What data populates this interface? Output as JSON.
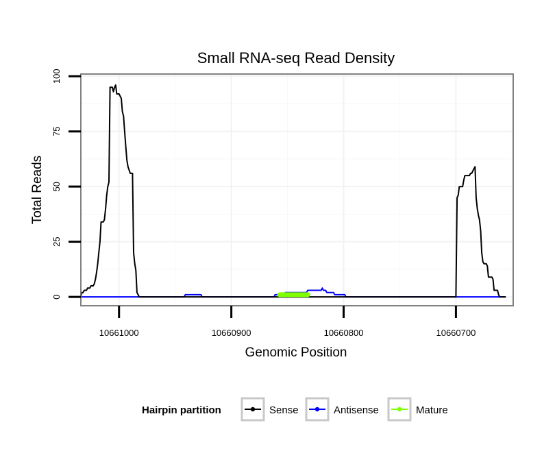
{
  "chart_data": {
    "type": "line",
    "title": "Small RNA-seq Read Density",
    "xlabel": "Genomic Position",
    "ylabel": "Total Reads",
    "xlim": [
      10661034,
      10660649
    ],
    "ylim": [
      -4,
      101
    ],
    "x_reversed": true,
    "xticks": [
      10661000,
      10660900,
      10660800,
      10660700
    ],
    "xtick_labels": [
      "10661000",
      "10660900",
      "10660800",
      "10660700"
    ],
    "yticks": [
      0,
      25,
      50,
      75,
      100
    ],
    "ytick_labels": [
      "0",
      "25",
      "50",
      "75",
      "100"
    ],
    "grid": true,
    "legend": {
      "title": "Hairpin partition",
      "position": "bottom",
      "entries": [
        "Sense",
        "Antisense",
        "Mature"
      ]
    },
    "series": [
      {
        "name": "Sense",
        "color": "#000000",
        "points": [
          [
            10661034,
            0
          ],
          [
            10661033,
            2
          ],
          [
            10661032,
            2
          ],
          [
            10661031,
            3
          ],
          [
            10661029,
            3
          ],
          [
            10661028,
            4
          ],
          [
            10661026,
            4
          ],
          [
            10661025,
            5
          ],
          [
            10661023,
            5
          ],
          [
            10661022,
            6
          ],
          [
            10661021,
            8
          ],
          [
            10661020,
            11
          ],
          [
            10661019,
            15
          ],
          [
            10661018,
            20
          ],
          [
            10661017,
            25
          ],
          [
            10661016,
            34
          ],
          [
            10661014,
            34
          ],
          [
            10661013,
            35
          ],
          [
            10661012,
            40
          ],
          [
            10661011,
            46
          ],
          [
            10661010,
            50
          ],
          [
            10661009,
            52
          ],
          [
            10661008,
            95
          ],
          [
            10661006,
            95
          ],
          [
            10661005,
            93
          ],
          [
            10661004,
            95
          ],
          [
            10661003,
            96
          ],
          [
            10661002,
            92
          ],
          [
            10661000,
            92
          ],
          [
            10660998,
            90
          ],
          [
            10660997,
            84
          ],
          [
            10660996,
            82
          ],
          [
            10660995,
            75
          ],
          [
            10660994,
            68
          ],
          [
            10660993,
            62
          ],
          [
            10660992,
            59
          ],
          [
            10660990,
            56
          ],
          [
            10660988,
            56
          ],
          [
            10660987,
            20
          ],
          [
            10660986,
            15
          ],
          [
            10660985,
            12
          ],
          [
            10660984,
            2
          ],
          [
            10660983,
            1
          ],
          [
            10660982,
            0
          ],
          [
            10660780,
            0
          ],
          [
            10660700,
            0
          ],
          [
            10660699,
            45
          ],
          [
            10660698,
            46
          ],
          [
            10660697,
            50
          ],
          [
            10660694,
            50
          ],
          [
            10660693,
            53
          ],
          [
            10660692,
            55
          ],
          [
            10660688,
            55
          ],
          [
            10660687,
            56
          ],
          [
            10660686,
            56
          ],
          [
            10660685,
            57
          ],
          [
            10660684,
            58
          ],
          [
            10660683,
            59
          ],
          [
            10660682,
            45
          ],
          [
            10660681,
            40
          ],
          [
            10660680,
            37
          ],
          [
            10660679,
            35
          ],
          [
            10660678,
            30
          ],
          [
            10660677,
            20
          ],
          [
            10660676,
            16
          ],
          [
            10660675,
            15
          ],
          [
            10660673,
            15
          ],
          [
            10660672,
            14
          ],
          [
            10660671,
            9
          ],
          [
            10660668,
            9
          ],
          [
            10660667,
            8
          ],
          [
            10660666,
            3
          ],
          [
            10660663,
            3
          ],
          [
            10660662,
            1
          ],
          [
            10660661,
            0
          ],
          [
            10660656,
            0
          ]
        ]
      },
      {
        "name": "Antisense",
        "color": "#0000ff",
        "points": [
          [
            10661034,
            0
          ],
          [
            10660942,
            0
          ],
          [
            10660941,
            1
          ],
          [
            10660927,
            1
          ],
          [
            10660926,
            0
          ],
          [
            10660862,
            0
          ],
          [
            10660861,
            1
          ],
          [
            10660853,
            1
          ],
          [
            10660852,
            2
          ],
          [
            10660833,
            2
          ],
          [
            10660832,
            3
          ],
          [
            10660820,
            3
          ],
          [
            10660819,
            4
          ],
          [
            10660818,
            3
          ],
          [
            10660816,
            3
          ],
          [
            10660815,
            2
          ],
          [
            10660809,
            2
          ],
          [
            10660808,
            1
          ],
          [
            10660799,
            1
          ],
          [
            10660798,
            0
          ],
          [
            10660656,
            0
          ]
        ]
      },
      {
        "name": "Mature",
        "color": "#7fff00",
        "points": [
          [
            10660857,
            1
          ],
          [
            10660848,
            1
          ],
          [
            10660844,
            1
          ],
          [
            10660838,
            1
          ],
          [
            10660832,
            1
          ]
        ]
      }
    ]
  }
}
